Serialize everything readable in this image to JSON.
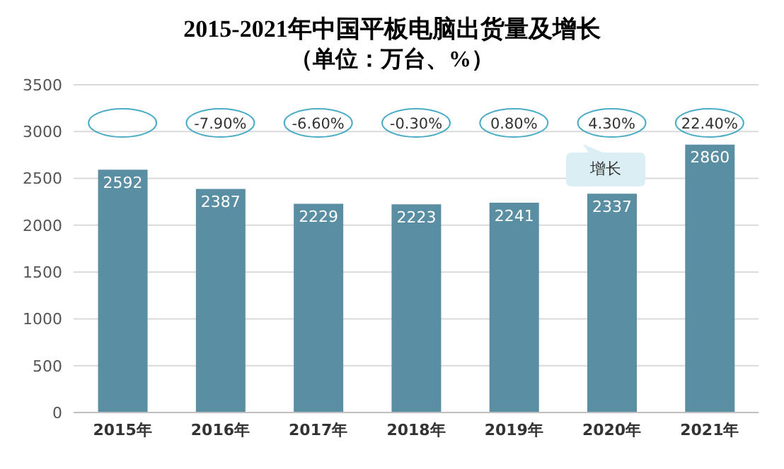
{
  "chart_data": {
    "type": "bar",
    "title": "2015-2021年中国平板电脑出货量及增长",
    "subtitle": "（单位：万台、%）",
    "categories": [
      "2015年",
      "2016年",
      "2017年",
      "2018年",
      "2019年",
      "2020年",
      "2021年"
    ],
    "values": [
      2592,
      2387,
      2229,
      2223,
      2241,
      2337,
      2860
    ],
    "color": "#5a8fa3",
    "ylim": [
      0,
      3500
    ],
    "yticks": [
      0,
      500,
      1000,
      1500,
      2000,
      2500,
      3000,
      3500
    ],
    "grid": "y",
    "data_labels": true,
    "annotations": [
      "增长",
      "-7.90%",
      "-6.60%",
      "-0.30%",
      "0.80%",
      "4.30%",
      "22.40%"
    ]
  }
}
